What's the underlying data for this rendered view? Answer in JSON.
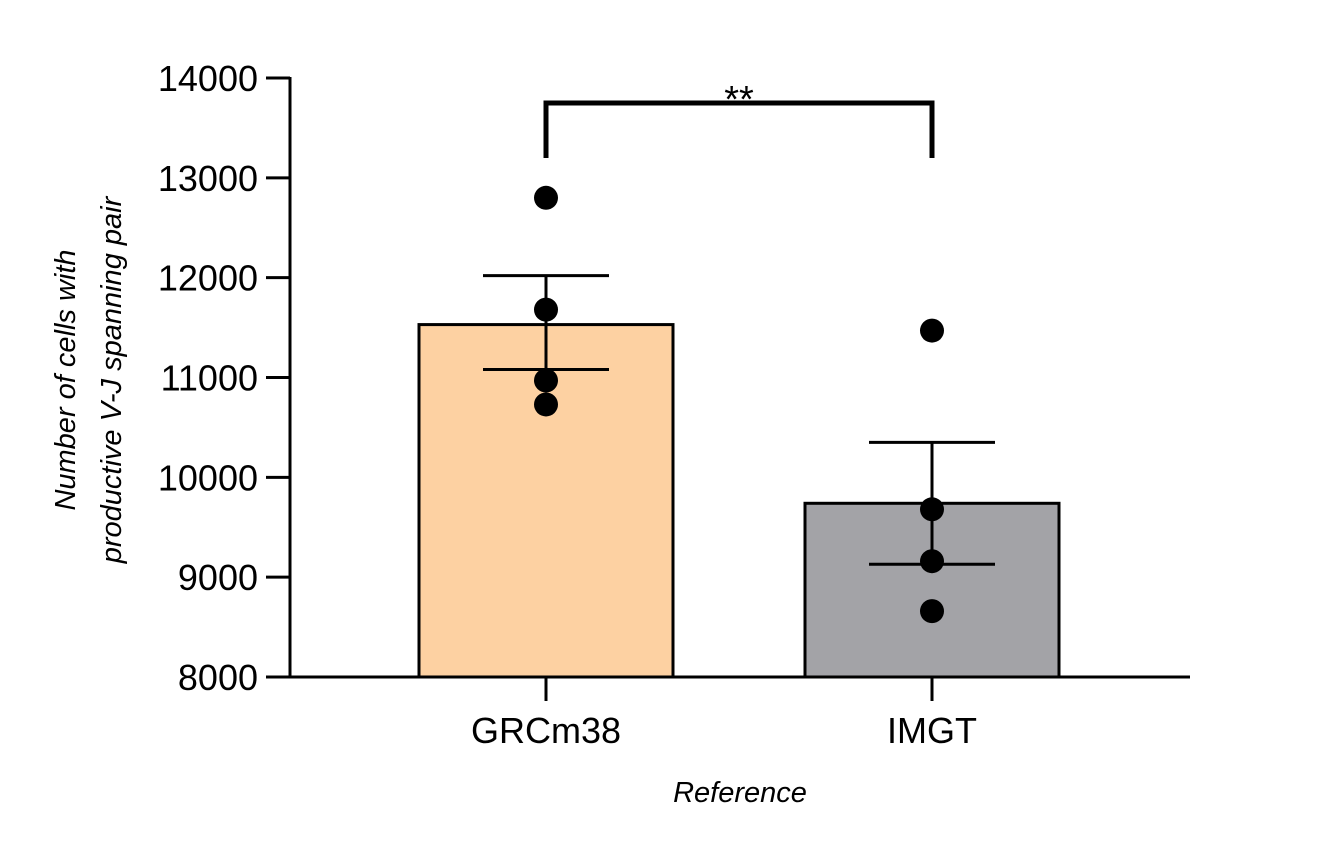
{
  "chart_data": {
    "type": "bar",
    "categories": [
      "GRCm38",
      "IMGT"
    ],
    "values": [
      11530,
      9740
    ],
    "error_bars": [
      {
        "upper": 12020,
        "lower": 11080
      },
      {
        "upper": 10350,
        "lower": 9130
      }
    ],
    "points": [
      [
        12800,
        11680,
        10970,
        10730
      ],
      [
        11470,
        9680,
        9160,
        8660
      ]
    ],
    "colors": {
      "bars": [
        "#FDD1A2",
        "#A3A3A7"
      ],
      "stroke": "#000000",
      "points": "#000000"
    },
    "ylim": [
      8000,
      14000
    ],
    "yticks": [
      "8000",
      "9000",
      "10000",
      "11000",
      "12000",
      "13000",
      "14000"
    ],
    "xlabel": "Reference",
    "ylabel_lines": [
      "Number of cells with",
      "productive V-J spanning pair"
    ],
    "significance": {
      "label": "**",
      "from": 0,
      "to": 1
    },
    "grid": false,
    "legend": "none"
  }
}
